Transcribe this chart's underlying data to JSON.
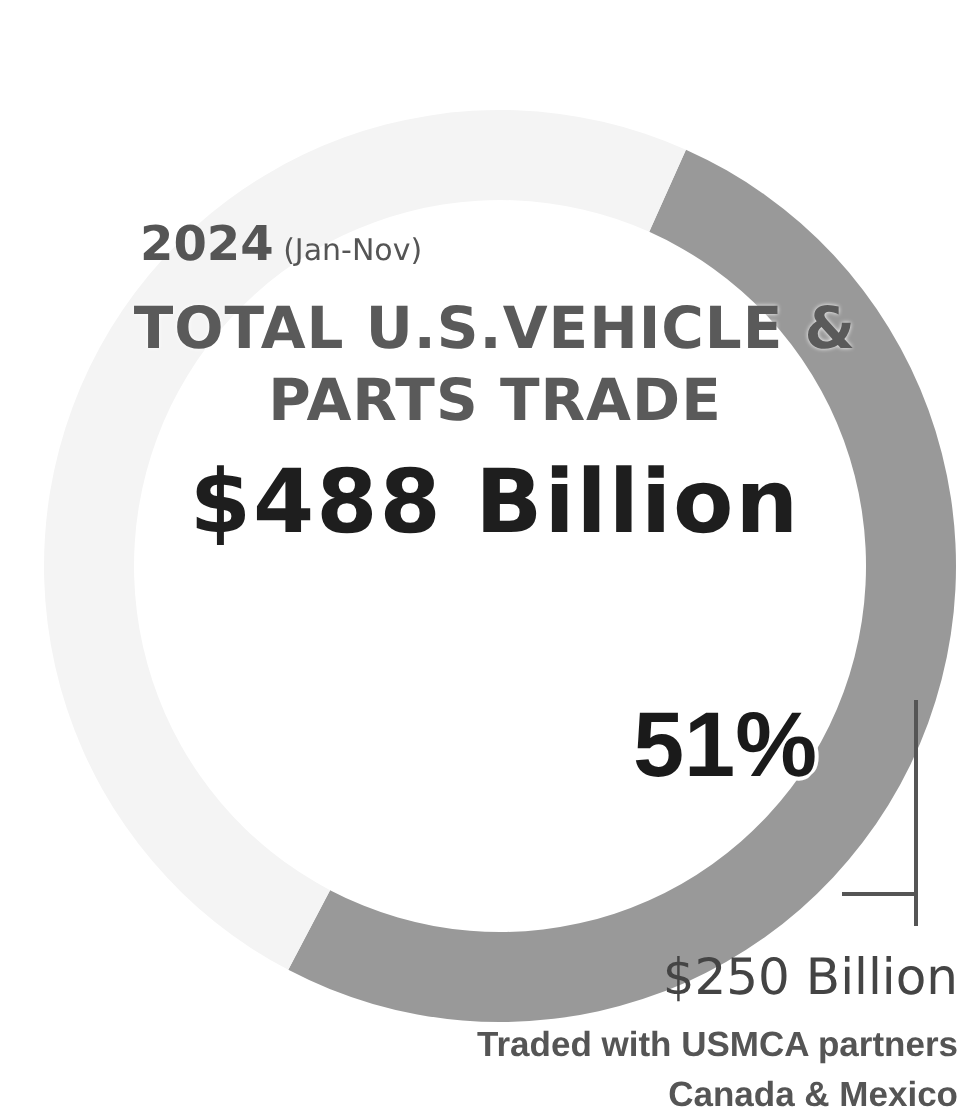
{
  "chart_data": {
    "type": "donut",
    "title": "TOTAL U.S.VEHICLE & PARTS TRADE",
    "subtitle": "$488 Billion",
    "annotations": [
      "2024 (Jan-Nov)",
      "$250 Billion",
      "Traded with USMCA partners Canada & Mexico"
    ],
    "categories": [
      null,
      null
    ],
    "values": [
      51,
      49
    ],
    "colors": [
      "#999999",
      "#f4f4f4"
    ],
    "value_labels": [
      "51%",
      null
    ]
  }
}
